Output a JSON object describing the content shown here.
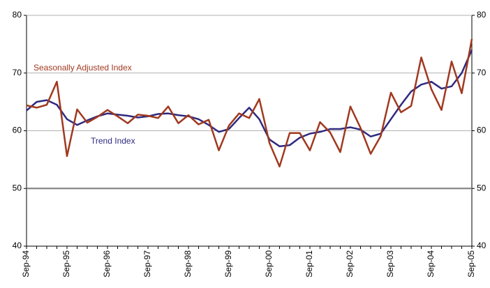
{
  "chart_data": {
    "type": "line",
    "categories": [
      "Sep-94",
      null,
      null,
      null,
      "Sep-95",
      null,
      null,
      null,
      "Sep-96",
      null,
      null,
      null,
      "Sep-97",
      null,
      null,
      null,
      "Sep-98",
      null,
      null,
      null,
      "Sep-99",
      null,
      null,
      null,
      "Sep-00",
      null,
      null,
      null,
      "Sep-01",
      null,
      null,
      null,
      "Sep-02",
      null,
      null,
      null,
      "Sep-03",
      null,
      null,
      null,
      "Sep-04",
      null,
      null,
      null,
      "Sep-05"
    ],
    "series": [
      {
        "name": "Seasonally Adjusted Index",
        "color": "#a0391f",
        "values": [
          64.4,
          64.0,
          64.5,
          68.5,
          55.6,
          63.7,
          61.4,
          62.4,
          63.6,
          62.5,
          61.3,
          62.8,
          62.6,
          62.2,
          64.2,
          61.3,
          62.7,
          61.1,
          61.9,
          56.6,
          60.9,
          63.0,
          62.2,
          65.5,
          57.9,
          53.8,
          59.6,
          59.6,
          56.6,
          61.5,
          59.7,
          56.3,
          64.2,
          60.5,
          56.0,
          59.1,
          66.6,
          63.2,
          64.3,
          72.7,
          67.2,
          63.6,
          72.0,
          66.5,
          75.9
        ]
      },
      {
        "name": "Trend Index",
        "color": "#2e2a7f",
        "values": [
          63.5,
          65.0,
          65.3,
          64.5,
          62.0,
          61.0,
          61.8,
          62.5,
          63.0,
          62.8,
          62.6,
          62.3,
          62.5,
          62.9,
          63.0,
          62.7,
          62.5,
          62.0,
          61.0,
          59.8,
          60.3,
          62.2,
          64.0,
          62.0,
          58.5,
          57.3,
          57.5,
          58.8,
          59.5,
          59.8,
          60.3,
          60.3,
          60.6,
          60.2,
          59.0,
          59.5,
          62.0,
          64.5,
          66.8,
          68.0,
          68.5,
          67.3,
          67.7,
          70.0,
          74.0
        ]
      }
    ],
    "ylim": [
      40,
      80
    ],
    "yticks": [
      40,
      50,
      60,
      70,
      80
    ],
    "y2lim": [
      40,
      80
    ],
    "y2ticks": [
      40,
      50,
      60,
      70,
      80
    ],
    "grid": true,
    "hline": 50
  }
}
